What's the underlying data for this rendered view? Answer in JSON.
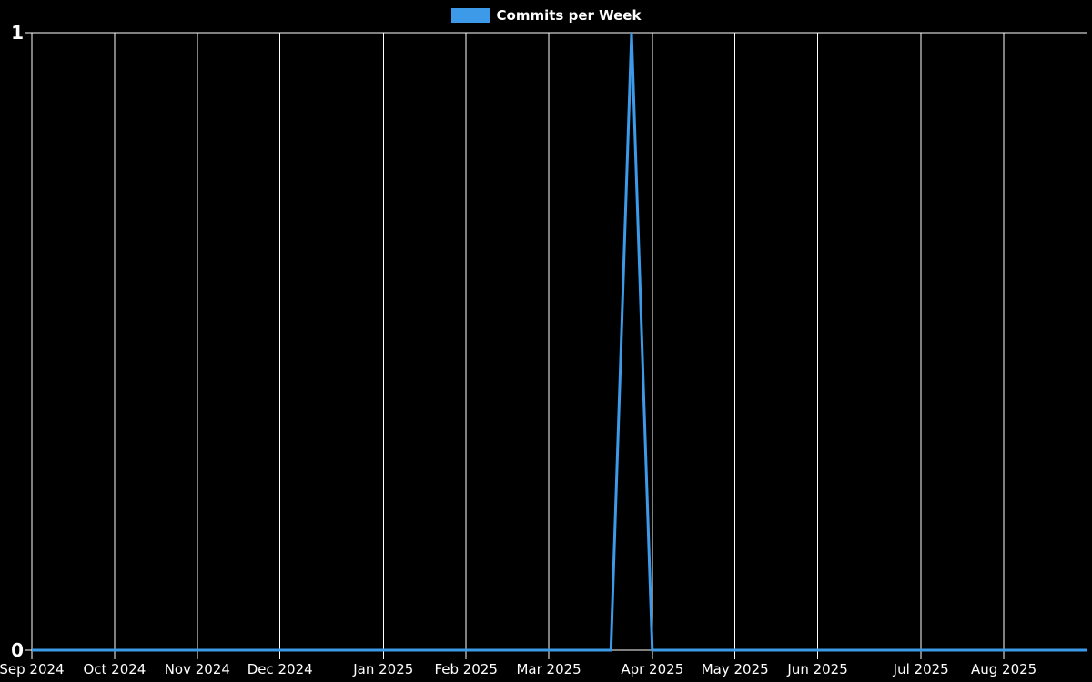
{
  "page": {
    "background_color": "#000000",
    "text_color": "#ffffff",
    "grid_color": "#ffffff"
  },
  "legend": {
    "position": "top-center",
    "items": [
      {
        "label": "Commits per Week",
        "color": "#3d9ae8"
      }
    ]
  },
  "chart_data": {
    "type": "line",
    "title": "",
    "xlabel": "",
    "ylabel": "",
    "ylim": [
      0,
      1
    ],
    "grid": "vertical-only",
    "legend_position": "top-center",
    "x_unit": "week",
    "y_ticks": [
      {
        "label": "0",
        "value": 0
      },
      {
        "label": "1",
        "value": 1
      }
    ],
    "x_ticks": [
      {
        "label": "Sep 2024",
        "week_index": 0
      },
      {
        "label": "Oct 2024",
        "week_index": 4
      },
      {
        "label": "Nov 2024",
        "week_index": 8
      },
      {
        "label": "Dec 2024",
        "week_index": 12
      },
      {
        "label": "Jan 2025",
        "week_index": 17
      },
      {
        "label": "Feb 2025",
        "week_index": 21
      },
      {
        "label": "Mar 2025",
        "week_index": 25
      },
      {
        "label": "Apr 2025",
        "week_index": 30
      },
      {
        "label": "May 2025",
        "week_index": 34
      },
      {
        "label": "Jun 2025",
        "week_index": 38
      },
      {
        "label": "Jul 2025",
        "week_index": 43
      },
      {
        "label": "Aug 2025",
        "week_index": 47
      }
    ],
    "weeks": [
      "2024-09-02",
      "2024-09-09",
      "2024-09-16",
      "2024-09-23",
      "2024-09-30",
      "2024-10-07",
      "2024-10-14",
      "2024-10-21",
      "2024-10-28",
      "2024-11-04",
      "2024-11-11",
      "2024-11-18",
      "2024-11-25",
      "2024-12-02",
      "2024-12-09",
      "2024-12-16",
      "2024-12-23",
      "2024-12-30",
      "2025-01-06",
      "2025-01-13",
      "2025-01-20",
      "2025-01-27",
      "2025-02-03",
      "2025-02-10",
      "2025-02-17",
      "2025-02-24",
      "2025-03-03",
      "2025-03-10",
      "2025-03-17",
      "2025-03-24",
      "2025-03-31",
      "2025-04-07",
      "2025-04-14",
      "2025-04-21",
      "2025-04-28",
      "2025-05-05",
      "2025-05-12",
      "2025-05-19",
      "2025-05-26",
      "2025-06-02",
      "2025-06-09",
      "2025-06-16",
      "2025-06-23",
      "2025-06-30",
      "2025-07-07",
      "2025-07-14",
      "2025-07-21",
      "2025-07-28",
      "2025-08-04",
      "2025-08-11",
      "2025-08-18",
      "2025-08-25"
    ],
    "series": [
      {
        "name": "Commits per Week",
        "color": "#3d9ae8",
        "values": [
          0,
          0,
          0,
          0,
          0,
          0,
          0,
          0,
          0,
          0,
          0,
          0,
          0,
          0,
          0,
          0,
          0,
          0,
          0,
          0,
          0,
          0,
          0,
          0,
          0,
          0,
          0,
          0,
          0,
          1,
          0,
          0,
          0,
          0,
          0,
          0,
          0,
          0,
          0,
          0,
          0,
          0,
          0,
          0,
          0,
          0,
          0,
          0,
          0,
          0,
          0,
          0
        ]
      }
    ],
    "peak": {
      "week": "2025-03-24",
      "value": 1
    }
  }
}
